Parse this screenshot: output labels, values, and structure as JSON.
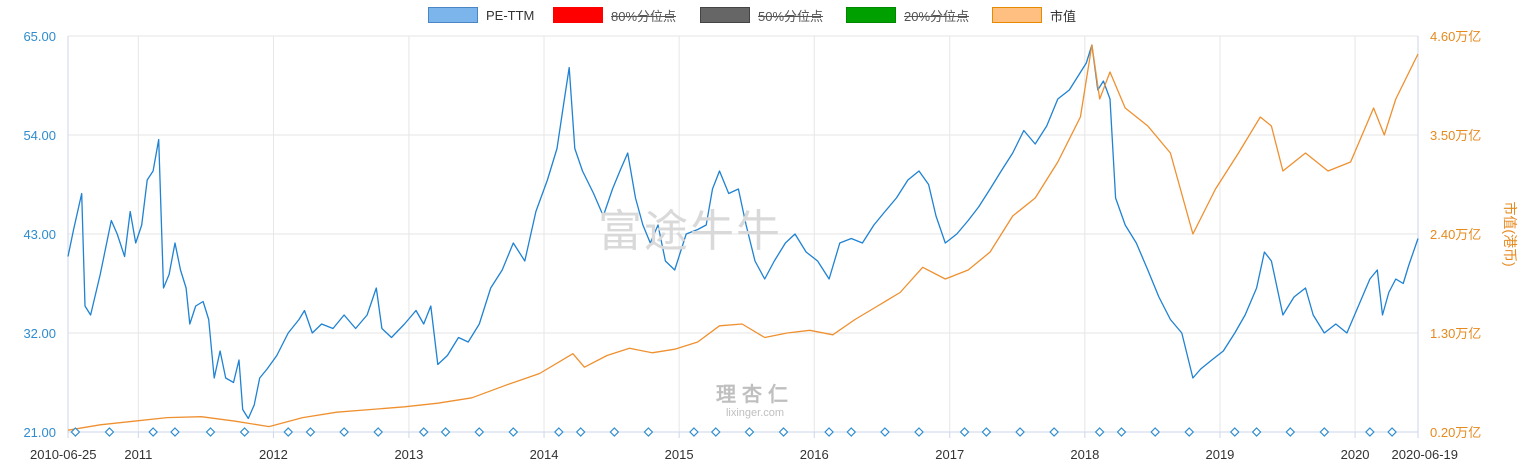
{
  "legend": [
    {
      "label": "PE-TTM",
      "color": "#7cb5ec",
      "border": "#4a86c5",
      "active": true
    },
    {
      "label": "80%分位点",
      "color": "#ff0000",
      "border": "#ff0000",
      "active": false
    },
    {
      "label": "50%分位点",
      "color": "#666666",
      "border": "#444444",
      "active": false
    },
    {
      "label": "20%分位点",
      "color": "#00a000",
      "border": "#008800",
      "active": false
    },
    {
      "label": "市值",
      "color": "#ffbf80",
      "border": "#e68a00",
      "active": true
    }
  ],
  "watermark": {
    "brand": "富途牛牛",
    "logo_cn": "理杏仁",
    "logo_url": "lixinger.com"
  },
  "chart_data": {
    "type": "line",
    "x_ticks": [
      "2010-06-25",
      "2011",
      "2012",
      "2013",
      "2014",
      "2015",
      "2016",
      "2017",
      "2018",
      "2019",
      "2020",
      "2020-06-19"
    ],
    "y_left": {
      "ticks": [
        "21.00",
        "32.00",
        "43.00",
        "54.00",
        "65.00"
      ],
      "range": [
        21,
        65
      ],
      "color": "#2f8ccf"
    },
    "y_right": {
      "label": "市值(港币)",
      "ticks": [
        "0.20万亿",
        "1.30万亿",
        "2.40万亿",
        "3.50万亿",
        "4.60万亿"
      ],
      "range": [
        0.2,
        4.6
      ],
      "color": "#e68a1e"
    },
    "grid": true,
    "series": [
      {
        "name": "PE-TTM",
        "axis": "left",
        "color": "#1f82d2",
        "points": [
          [
            "2010-06-25",
            40.5
          ],
          [
            "2010-07-10",
            43.5
          ],
          [
            "2010-08-01",
            47.5
          ],
          [
            "2010-08-10",
            35
          ],
          [
            "2010-08-25",
            34
          ],
          [
            "2010-09-20",
            38.5
          ],
          [
            "2010-10-20",
            44.5
          ],
          [
            "2010-11-05",
            43
          ],
          [
            "2010-11-25",
            40.5
          ],
          [
            "2010-12-10",
            45.5
          ],
          [
            "2010-12-25",
            42
          ],
          [
            "2011-01-10",
            44
          ],
          [
            "2011-01-25",
            49
          ],
          [
            "2011-02-10",
            50
          ],
          [
            "2011-02-25",
            53.5
          ],
          [
            "2011-03-10",
            37
          ],
          [
            "2011-03-25",
            38.5
          ],
          [
            "2011-04-10",
            42
          ],
          [
            "2011-04-25",
            39
          ],
          [
            "2011-05-10",
            37
          ],
          [
            "2011-05-20",
            33
          ],
          [
            "2011-06-05",
            35
          ],
          [
            "2011-06-25",
            35.5
          ],
          [
            "2011-07-10",
            33.5
          ],
          [
            "2011-07-25",
            27
          ],
          [
            "2011-08-10",
            30
          ],
          [
            "2011-08-25",
            27
          ],
          [
            "2011-09-15",
            26.5
          ],
          [
            "2011-09-30",
            29
          ],
          [
            "2011-10-10",
            23.5
          ],
          [
            "2011-10-25",
            22.5
          ],
          [
            "2011-11-10",
            24
          ],
          [
            "2011-11-25",
            27
          ],
          [
            "2011-12-15",
            28
          ],
          [
            "2012-01-10",
            29.5
          ],
          [
            "2012-02-10",
            32
          ],
          [
            "2012-03-10",
            33.5
          ],
          [
            "2012-03-25",
            34.5
          ],
          [
            "2012-04-15",
            32
          ],
          [
            "2012-05-10",
            33
          ],
          [
            "2012-06-10",
            32.5
          ],
          [
            "2012-07-10",
            34
          ],
          [
            "2012-08-10",
            32.5
          ],
          [
            "2012-09-10",
            34
          ],
          [
            "2012-10-05",
            37
          ],
          [
            "2012-10-20",
            32.5
          ],
          [
            "2012-11-15",
            31.5
          ],
          [
            "2012-12-20",
            33
          ],
          [
            "2013-01-20",
            34.5
          ],
          [
            "2013-02-10",
            33
          ],
          [
            "2013-03-01",
            35
          ],
          [
            "2013-03-20",
            28.5
          ],
          [
            "2013-04-15",
            29.5
          ],
          [
            "2013-05-15",
            31.5
          ],
          [
            "2013-06-10",
            31
          ],
          [
            "2013-07-10",
            33
          ],
          [
            "2013-08-10",
            37
          ],
          [
            "2013-09-10",
            39
          ],
          [
            "2013-10-10",
            42
          ],
          [
            "2013-11-10",
            40
          ],
          [
            "2013-12-10",
            45.5
          ],
          [
            "2014-01-10",
            49
          ],
          [
            "2014-02-05",
            52.5
          ],
          [
            "2014-02-25",
            58
          ],
          [
            "2014-03-10",
            61.5
          ],
          [
            "2014-03-25",
            52.5
          ],
          [
            "2014-04-15",
            50
          ],
          [
            "2014-05-15",
            47.5
          ],
          [
            "2014-06-10",
            45
          ],
          [
            "2014-07-05",
            48
          ],
          [
            "2014-07-25",
            50
          ],
          [
            "2014-08-15",
            52
          ],
          [
            "2014-09-05",
            47
          ],
          [
            "2014-09-25",
            44
          ],
          [
            "2014-10-15",
            42
          ],
          [
            "2014-11-05",
            44
          ],
          [
            "2014-11-25",
            40
          ],
          [
            "2014-12-20",
            39
          ],
          [
            "2015-01-20",
            43
          ],
          [
            "2015-02-20",
            43.5
          ],
          [
            "2015-03-15",
            44
          ],
          [
            "2015-04-01",
            48
          ],
          [
            "2015-04-20",
            50
          ],
          [
            "2015-05-15",
            47.5
          ],
          [
            "2015-06-10",
            48
          ],
          [
            "2015-07-01",
            44
          ],
          [
            "2015-07-25",
            40
          ],
          [
            "2015-08-20",
            38
          ],
          [
            "2015-09-15",
            40
          ],
          [
            "2015-10-15",
            42
          ],
          [
            "2015-11-10",
            43
          ],
          [
            "2015-12-10",
            41
          ],
          [
            "2016-01-10",
            40
          ],
          [
            "2016-02-10",
            38
          ],
          [
            "2016-03-10",
            42
          ],
          [
            "2016-04-10",
            42.5
          ],
          [
            "2016-05-10",
            42
          ],
          [
            "2016-06-10",
            44
          ],
          [
            "2016-07-10",
            45.5
          ],
          [
            "2016-08-10",
            47
          ],
          [
            "2016-09-10",
            49
          ],
          [
            "2016-10-10",
            50
          ],
          [
            "2016-11-05",
            48.5
          ],
          [
            "2016-11-25",
            45
          ],
          [
            "2016-12-20",
            42
          ],
          [
            "2017-01-20",
            43
          ],
          [
            "2017-02-20",
            44.5
          ],
          [
            "2017-03-20",
            46
          ],
          [
            "2017-04-20",
            48
          ],
          [
            "2017-05-20",
            50
          ],
          [
            "2017-06-20",
            52
          ],
          [
            "2017-07-20",
            54.5
          ],
          [
            "2017-08-20",
            53
          ],
          [
            "2017-09-20",
            55
          ],
          [
            "2017-10-20",
            58
          ],
          [
            "2017-11-20",
            59
          ],
          [
            "2018-01-05",
            62
          ],
          [
            "2018-01-20",
            64
          ],
          [
            "2018-02-05",
            59
          ],
          [
            "2018-02-20",
            60
          ],
          [
            "2018-03-10",
            58
          ],
          [
            "2018-03-25",
            47
          ],
          [
            "2018-04-20",
            44
          ],
          [
            "2018-05-20",
            42
          ],
          [
            "2018-06-20",
            39
          ],
          [
            "2018-07-20",
            36
          ],
          [
            "2018-08-20",
            33.5
          ],
          [
            "2018-09-20",
            32
          ],
          [
            "2018-10-20",
            27
          ],
          [
            "2018-11-10",
            28
          ],
          [
            "2018-12-10",
            29
          ],
          [
            "2019-01-10",
            30
          ],
          [
            "2019-02-10",
            32
          ],
          [
            "2019-03-10",
            34
          ],
          [
            "2019-04-10",
            37
          ],
          [
            "2019-05-01",
            41
          ],
          [
            "2019-05-20",
            40
          ],
          [
            "2019-06-20",
            34
          ],
          [
            "2019-07-20",
            36
          ],
          [
            "2019-08-20",
            37
          ],
          [
            "2019-09-10",
            34
          ],
          [
            "2019-10-10",
            32
          ],
          [
            "2019-11-10",
            33
          ],
          [
            "2019-12-10",
            32
          ],
          [
            "2020-01-10",
            35
          ],
          [
            "2020-02-10",
            38
          ],
          [
            "2020-03-01",
            39
          ],
          [
            "2020-03-15",
            34
          ],
          [
            "2020-04-01",
            36.5
          ],
          [
            "2020-04-20",
            38
          ],
          [
            "2020-05-10",
            37.5
          ],
          [
            "2020-05-25",
            39.5
          ],
          [
            "2020-06-19",
            42.5
          ]
        ]
      },
      {
        "name": "市值",
        "axis": "right",
        "color": "#ef9030",
        "points": [
          [
            "2010-06-25",
            0.22
          ],
          [
            "2010-09-20",
            0.28
          ],
          [
            "2010-12-20",
            0.32
          ],
          [
            "2011-03-20",
            0.36
          ],
          [
            "2011-06-20",
            0.37
          ],
          [
            "2011-09-20",
            0.32
          ],
          [
            "2011-12-20",
            0.26
          ],
          [
            "2012-03-20",
            0.36
          ],
          [
            "2012-06-20",
            0.42
          ],
          [
            "2012-09-20",
            0.45
          ],
          [
            "2012-12-20",
            0.48
          ],
          [
            "2013-03-20",
            0.52
          ],
          [
            "2013-06-20",
            0.58
          ],
          [
            "2013-09-20",
            0.72
          ],
          [
            "2013-12-20",
            0.85
          ],
          [
            "2014-03-20",
            1.07
          ],
          [
            "2014-04-20",
            0.92
          ],
          [
            "2014-06-20",
            1.05
          ],
          [
            "2014-08-20",
            1.13
          ],
          [
            "2014-10-20",
            1.08
          ],
          [
            "2014-12-20",
            1.12
          ],
          [
            "2015-02-20",
            1.2
          ],
          [
            "2015-04-20",
            1.38
          ],
          [
            "2015-06-20",
            1.4
          ],
          [
            "2015-08-20",
            1.25
          ],
          [
            "2015-10-20",
            1.3
          ],
          [
            "2015-12-20",
            1.33
          ],
          [
            "2016-02-20",
            1.28
          ],
          [
            "2016-04-20",
            1.45
          ],
          [
            "2016-06-20",
            1.6
          ],
          [
            "2016-08-20",
            1.75
          ],
          [
            "2016-10-20",
            2.03
          ],
          [
            "2016-12-20",
            1.9
          ],
          [
            "2017-02-20",
            2.0
          ],
          [
            "2017-04-20",
            2.2
          ],
          [
            "2017-06-20",
            2.6
          ],
          [
            "2017-08-20",
            2.8
          ],
          [
            "2017-10-20",
            3.2
          ],
          [
            "2017-12-20",
            3.7
          ],
          [
            "2018-01-20",
            4.5
          ],
          [
            "2018-02-10",
            3.9
          ],
          [
            "2018-03-10",
            4.2
          ],
          [
            "2018-04-20",
            3.8
          ],
          [
            "2018-06-20",
            3.6
          ],
          [
            "2018-08-20",
            3.3
          ],
          [
            "2018-10-20",
            2.4
          ],
          [
            "2018-12-20",
            2.9
          ],
          [
            "2019-02-20",
            3.3
          ],
          [
            "2019-04-20",
            3.7
          ],
          [
            "2019-05-20",
            3.6
          ],
          [
            "2019-06-20",
            3.1
          ],
          [
            "2019-08-20",
            3.3
          ],
          [
            "2019-10-20",
            3.1
          ],
          [
            "2019-12-20",
            3.2
          ],
          [
            "2020-02-20",
            3.8
          ],
          [
            "2020-03-20",
            3.5
          ],
          [
            "2020-04-20",
            3.9
          ],
          [
            "2020-06-19",
            4.4
          ]
        ]
      }
    ],
    "markers": [
      "2010-07-15",
      "2010-10-15",
      "2011-02-10",
      "2011-04-10",
      "2011-07-15",
      "2011-10-15",
      "2012-02-10",
      "2012-04-10",
      "2012-07-10",
      "2012-10-10",
      "2013-02-10",
      "2013-04-10",
      "2013-07-10",
      "2013-10-10",
      "2014-02-10",
      "2014-04-10",
      "2014-07-10",
      "2014-10-10",
      "2015-02-10",
      "2015-04-10",
      "2015-07-10",
      "2015-10-10",
      "2016-02-10",
      "2016-04-10",
      "2016-07-10",
      "2016-10-10",
      "2017-02-10",
      "2017-04-10",
      "2017-07-10",
      "2017-10-10",
      "2018-02-10",
      "2018-04-10",
      "2018-07-10",
      "2018-10-10",
      "2019-02-10",
      "2019-04-10",
      "2019-07-10",
      "2019-10-10",
      "2020-02-10",
      "2020-04-10"
    ]
  }
}
